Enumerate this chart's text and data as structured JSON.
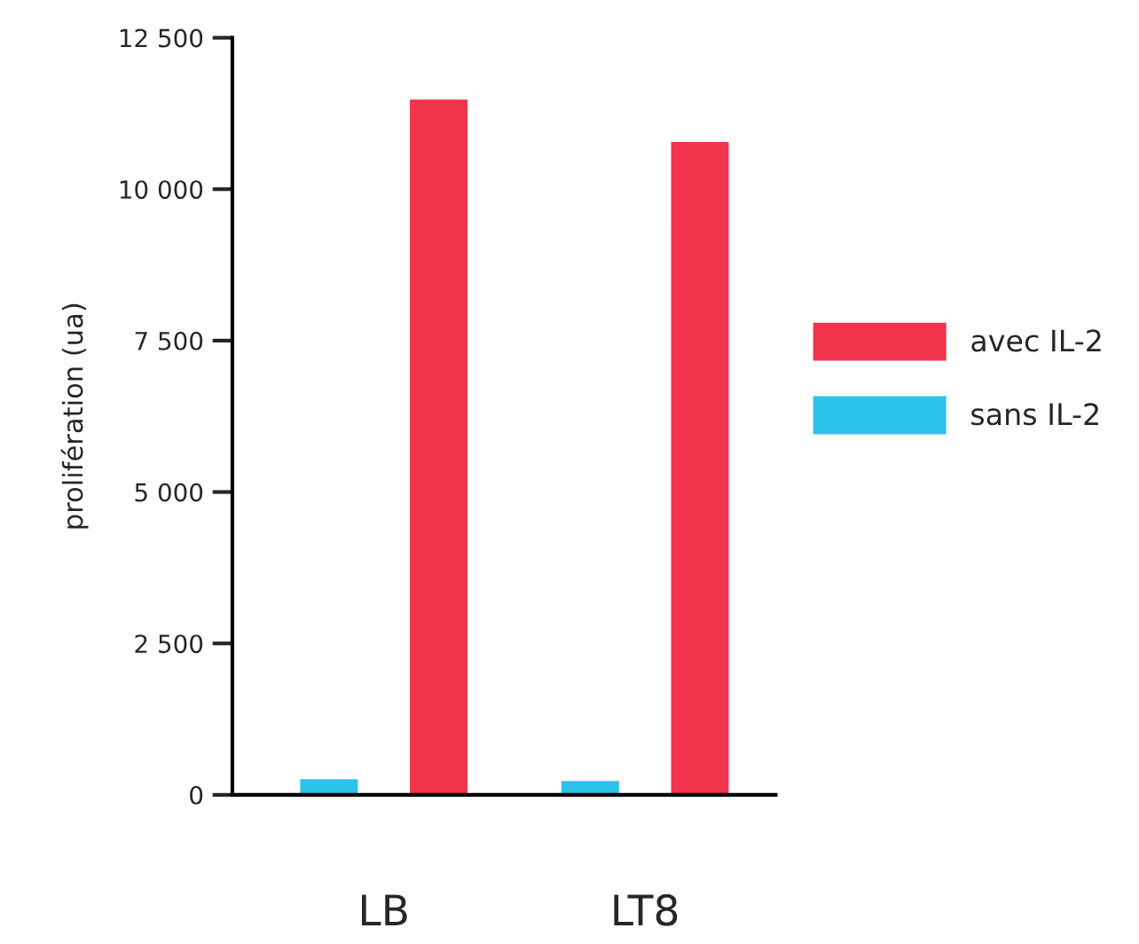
{
  "chart_data": {
    "type": "bar",
    "ylabel": "prolifération (ua)",
    "categories": [
      "LB",
      "LT8"
    ],
    "series": [
      {
        "name": "sans IL-2",
        "color": "#2ac3ea",
        "values": [
          280,
          250
        ]
      },
      {
        "name": "avec IL-2",
        "color": "#f1334b",
        "values": [
          11500,
          10800
        ]
      }
    ],
    "ylim": [
      0,
      12500
    ],
    "yticks": [
      0,
      {
        "value": 2500,
        "label": "2 500"
      },
      {
        "value": 5000,
        "label": "5 000"
      },
      {
        "value": 7500,
        "label": "7 500"
      },
      {
        "value": 10000,
        "label": "10 000"
      },
      {
        "value": 12500,
        "label": "12 500"
      }
    ],
    "legend": "right",
    "grid": false
  }
}
